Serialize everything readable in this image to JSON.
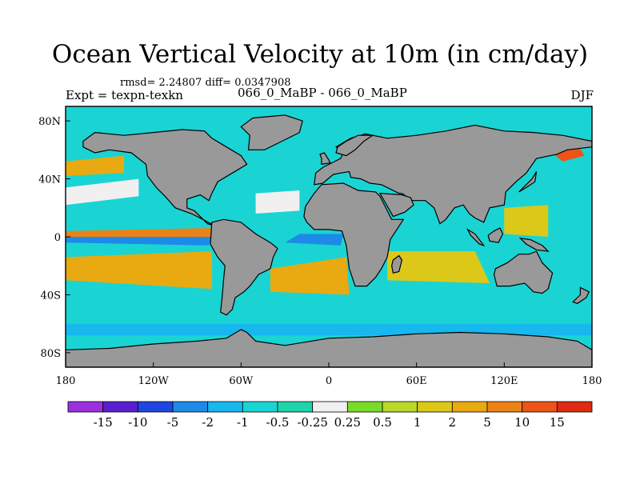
{
  "header": {
    "title": "Ocean Vertical Velocity at 10m (in cm/day)",
    "stats": "rmsd= 2.24807 diff= 0.0347908",
    "experiment": "Expt = texpn-texkn",
    "runs": "066_0_MaBP - 066_0_MaBP",
    "season": "DJF"
  },
  "map": {
    "lon_range": [
      -180,
      180
    ],
    "lat_range": [
      -90,
      90
    ],
    "lon_ticks": [
      {
        "value": -180,
        "label": "180"
      },
      {
        "value": -120,
        "label": "120W"
      },
      {
        "value": -60,
        "label": "60W"
      },
      {
        "value": 0,
        "label": "0"
      },
      {
        "value": 60,
        "label": "60E"
      },
      {
        "value": 120,
        "label": "120E"
      },
      {
        "value": 180,
        "label": "180"
      }
    ],
    "lat_ticks": [
      {
        "value": 80,
        "label": "80N"
      },
      {
        "value": 40,
        "label": "40N"
      },
      {
        "value": 0,
        "label": "0"
      },
      {
        "value": -40,
        "label": "40S"
      },
      {
        "value": -80,
        "label": "80S"
      }
    ],
    "land_color": "#999999",
    "continents": [
      {
        "name": "north-america",
        "points": [
          [
            -168,
            66
          ],
          [
            -160,
            72
          ],
          [
            -140,
            70
          ],
          [
            -120,
            72
          ],
          [
            -100,
            74
          ],
          [
            -85,
            73
          ],
          [
            -80,
            68
          ],
          [
            -70,
            62
          ],
          [
            -60,
            56
          ],
          [
            -56,
            50
          ],
          [
            -66,
            44
          ],
          [
            -76,
            38
          ],
          [
            -80,
            30
          ],
          [
            -82,
            25
          ],
          [
            -88,
            29
          ],
          [
            -97,
            26
          ],
          [
            -97,
            20
          ],
          [
            -92,
            18
          ],
          [
            -88,
            14
          ],
          [
            -83,
            9
          ],
          [
            -79,
            8
          ],
          [
            -86,
            12
          ],
          [
            -94,
            16
          ],
          [
            -105,
            20
          ],
          [
            -112,
            28
          ],
          [
            -118,
            34
          ],
          [
            -124,
            42
          ],
          [
            -125,
            50
          ],
          [
            -135,
            58
          ],
          [
            -150,
            60
          ],
          [
            -160,
            58
          ],
          [
            -168,
            62
          ]
        ]
      },
      {
        "name": "greenland",
        "points": [
          [
            -55,
            60
          ],
          [
            -44,
            60
          ],
          [
            -32,
            66
          ],
          [
            -20,
            72
          ],
          [
            -18,
            80
          ],
          [
            -30,
            84
          ],
          [
            -52,
            82
          ],
          [
            -60,
            76
          ],
          [
            -54,
            70
          ]
        ]
      },
      {
        "name": "south-america",
        "points": [
          [
            -80,
            10
          ],
          [
            -72,
            12
          ],
          [
            -60,
            10
          ],
          [
            -50,
            2
          ],
          [
            -40,
            -4
          ],
          [
            -35,
            -8
          ],
          [
            -38,
            -14
          ],
          [
            -40,
            -22
          ],
          [
            -48,
            -26
          ],
          [
            -54,
            -34
          ],
          [
            -58,
            -38
          ],
          [
            -64,
            -42
          ],
          [
            -66,
            -50
          ],
          [
            -70,
            -54
          ],
          [
            -74,
            -52
          ],
          [
            -73,
            -42
          ],
          [
            -72,
            -30
          ],
          [
            -71,
            -20
          ],
          [
            -76,
            -14
          ],
          [
            -81,
            -5
          ]
        ]
      },
      {
        "name": "africa",
        "points": [
          [
            -17,
            14
          ],
          [
            -16,
            21
          ],
          [
            -10,
            30
          ],
          [
            -5,
            36
          ],
          [
            10,
            37
          ],
          [
            20,
            32
          ],
          [
            32,
            31
          ],
          [
            35,
            28
          ],
          [
            43,
            12
          ],
          [
            51,
            12
          ],
          [
            42,
            -2
          ],
          [
            40,
            -14
          ],
          [
            36,
            -22
          ],
          [
            32,
            -28
          ],
          [
            26,
            -34
          ],
          [
            18,
            -34
          ],
          [
            14,
            -22
          ],
          [
            12,
            -6
          ],
          [
            9,
            4
          ],
          [
            0,
            5
          ],
          [
            -10,
            5
          ],
          [
            -15,
            10
          ]
        ]
      },
      {
        "name": "eurasia",
        "points": [
          [
            -10,
            36
          ],
          [
            -9,
            44
          ],
          [
            -4,
            48
          ],
          [
            2,
            51
          ],
          [
            8,
            54
          ],
          [
            10,
            58
          ],
          [
            5,
            62
          ],
          [
            15,
            68
          ],
          [
            25,
            71
          ],
          [
            40,
            68
          ],
          [
            60,
            70
          ],
          [
            80,
            73
          ],
          [
            100,
            77
          ],
          [
            120,
            73
          ],
          [
            140,
            72
          ],
          [
            160,
            70
          ],
          [
            180,
            66
          ],
          [
            180,
            62
          ],
          [
            163,
            60
          ],
          [
            156,
            57
          ],
          [
            142,
            54
          ],
          [
            135,
            44
          ],
          [
            128,
            38
          ],
          [
            121,
            31
          ],
          [
            120,
            22
          ],
          [
            110,
            20
          ],
          [
            106,
            10
          ],
          [
            100,
            13
          ],
          [
            96,
            16
          ],
          [
            92,
            22
          ],
          [
            86,
            20
          ],
          [
            80,
            12
          ],
          [
            76,
            9
          ],
          [
            72,
            20
          ],
          [
            66,
            25
          ],
          [
            57,
            25
          ],
          [
            50,
            30
          ],
          [
            48,
            30
          ],
          [
            36,
            36
          ],
          [
            28,
            37
          ],
          [
            22,
            40
          ],
          [
            15,
            41
          ],
          [
            14,
            45
          ],
          [
            8,
            44
          ],
          [
            3,
            43
          ],
          [
            -4,
            37
          ]
        ]
      },
      {
        "name": "arabia",
        "points": [
          [
            35,
            30
          ],
          [
            44,
            14
          ],
          [
            52,
            17
          ],
          [
            58,
            22
          ],
          [
            56,
            27
          ],
          [
            50,
            29
          ]
        ]
      },
      {
        "name": "madagascar",
        "points": [
          [
            44,
            -16
          ],
          [
            48,
            -13
          ],
          [
            50,
            -16
          ],
          [
            48,
            -24
          ],
          [
            44,
            -25
          ],
          [
            43,
            -20
          ]
        ]
      },
      {
        "name": "australia",
        "points": [
          [
            114,
            -22
          ],
          [
            122,
            -18
          ],
          [
            130,
            -12
          ],
          [
            137,
            -12
          ],
          [
            142,
            -10
          ],
          [
            146,
            -18
          ],
          [
            153,
            -25
          ],
          [
            150,
            -36
          ],
          [
            146,
            -39
          ],
          [
            140,
            -38
          ],
          [
            134,
            -32
          ],
          [
            124,
            -34
          ],
          [
            115,
            -34
          ],
          [
            113,
            -26
          ]
        ]
      },
      {
        "name": "borneo",
        "points": [
          [
            109,
            1
          ],
          [
            113,
            4
          ],
          [
            117,
            6
          ],
          [
            119,
            2
          ],
          [
            116,
            -4
          ],
          [
            110,
            -3
          ]
        ]
      },
      {
        "name": "sumatra",
        "points": [
          [
            95,
            5
          ],
          [
            100,
            2
          ],
          [
            106,
            -6
          ],
          [
            103,
            -5
          ],
          [
            97,
            1
          ]
        ]
      },
      {
        "name": "new-guinea",
        "points": [
          [
            131,
            -1
          ],
          [
            138,
            -2
          ],
          [
            146,
            -6
          ],
          [
            150,
            -10
          ],
          [
            142,
            -9
          ],
          [
            135,
            -5
          ]
        ]
      },
      {
        "name": "japan",
        "points": [
          [
            130,
            31
          ],
          [
            135,
            34
          ],
          [
            141,
            38
          ],
          [
            142,
            45
          ],
          [
            139,
            40
          ],
          [
            133,
            34
          ]
        ]
      },
      {
        "name": "uk",
        "points": [
          [
            -5,
            50
          ],
          [
            1,
            51
          ],
          [
            0,
            53
          ],
          [
            -3,
            58
          ],
          [
            -6,
            57
          ],
          [
            -5,
            54
          ]
        ]
      },
      {
        "name": "scandinavia-arm",
        "points": [
          [
            5,
            58
          ],
          [
            12,
            56
          ],
          [
            18,
            60
          ],
          [
            24,
            66
          ],
          [
            30,
            70
          ],
          [
            20,
            70
          ],
          [
            12,
            66
          ],
          [
            6,
            62
          ]
        ]
      },
      {
        "name": "new-zealand",
        "points": [
          [
            172,
            -35
          ],
          [
            178,
            -38
          ],
          [
            176,
            -42
          ],
          [
            170,
            -46
          ],
          [
            167,
            -45
          ],
          [
            172,
            -40
          ]
        ]
      },
      {
        "name": "antarctica",
        "points": [
          [
            -180,
            -90
          ],
          [
            -180,
            -78
          ],
          [
            -150,
            -77
          ],
          [
            -120,
            -74
          ],
          [
            -90,
            -72
          ],
          [
            -70,
            -70
          ],
          [
            -60,
            -64
          ],
          [
            -56,
            -66
          ],
          [
            -50,
            -72
          ],
          [
            -30,
            -75
          ],
          [
            0,
            -70
          ],
          [
            30,
            -69
          ],
          [
            60,
            -67
          ],
          [
            90,
            -66
          ],
          [
            120,
            -67
          ],
          [
            150,
            -69
          ],
          [
            170,
            -72
          ],
          [
            180,
            -78
          ],
          [
            180,
            -90
          ]
        ]
      }
    ],
    "ocean_fields": [
      {
        "level": "5 to 10",
        "points": [
          [
            -180,
            4
          ],
          [
            -80,
            6
          ],
          [
            -80,
            0
          ],
          [
            -180,
            -2
          ]
        ]
      },
      {
        "level": "-5 to -2",
        "points": [
          [
            -180,
            0
          ],
          [
            -80,
            0
          ],
          [
            -82,
            -6
          ],
          [
            -180,
            -4
          ]
        ]
      },
      {
        "level": "-5 to -2",
        "points": [
          [
            -20,
            2
          ],
          [
            10,
            2
          ],
          [
            8,
            -6
          ],
          [
            -30,
            -4
          ]
        ]
      },
      {
        "level": "2 to 5",
        "points": [
          [
            -180,
            -14
          ],
          [
            -80,
            -10
          ],
          [
            -80,
            -36
          ],
          [
            -180,
            -30
          ]
        ]
      },
      {
        "level": "2 to 5",
        "points": [
          [
            -40,
            -22
          ],
          [
            12,
            -14
          ],
          [
            14,
            -40
          ],
          [
            -40,
            -38
          ]
        ]
      },
      {
        "level": "1 to 2",
        "points": [
          [
            40,
            -10
          ],
          [
            100,
            -10
          ],
          [
            110,
            -32
          ],
          [
            40,
            -30
          ]
        ]
      },
      {
        "level": "-1 to -0.5",
        "points": [
          [
            -180,
            -44
          ],
          [
            180,
            -44
          ],
          [
            180,
            -58
          ],
          [
            -180,
            -58
          ]
        ]
      },
      {
        "level": "-2 to -1",
        "points": [
          [
            -180,
            -60
          ],
          [
            180,
            -60
          ],
          [
            180,
            -68
          ],
          [
            -180,
            -68
          ]
        ]
      },
      {
        "level": "-0.25 to 0.25",
        "points": [
          [
            -180,
            34
          ],
          [
            -130,
            40
          ],
          [
            -130,
            28
          ],
          [
            -180,
            22
          ]
        ]
      },
      {
        "level": "-0.25 to 0.25",
        "points": [
          [
            -50,
            30
          ],
          [
            -20,
            32
          ],
          [
            -20,
            18
          ],
          [
            -50,
            16
          ]
        ]
      },
      {
        "level": "10 to 15",
        "points": [
          [
            150,
            60
          ],
          [
            170,
            64
          ],
          [
            175,
            56
          ],
          [
            160,
            52
          ]
        ]
      },
      {
        "level": "2 to 5",
        "points": [
          [
            -180,
            52
          ],
          [
            -140,
            56
          ],
          [
            -140,
            44
          ],
          [
            -180,
            42
          ]
        ]
      },
      {
        "level": "1 to 2",
        "points": [
          [
            120,
            20
          ],
          [
            150,
            22
          ],
          [
            150,
            0
          ],
          [
            120,
            2
          ]
        ]
      }
    ]
  },
  "colorbar": {
    "colors": [
      "#9b30e0",
      "#5a1ed0",
      "#1e46e0",
      "#1e8ae8",
      "#16b8ee",
      "#1ad4d4",
      "#1fd4aa",
      "#f0f0f0",
      "#7adc28",
      "#b8d82a",
      "#dcc818",
      "#e8aa10",
      "#ec8216",
      "#ec5418",
      "#de2a10"
    ],
    "labels": [
      "-15",
      "-10",
      "-5",
      "-2",
      "-1",
      "-0.5",
      "-0.25",
      "0.25",
      "0.5",
      "1",
      "2",
      "5",
      "10",
      "15"
    ]
  }
}
